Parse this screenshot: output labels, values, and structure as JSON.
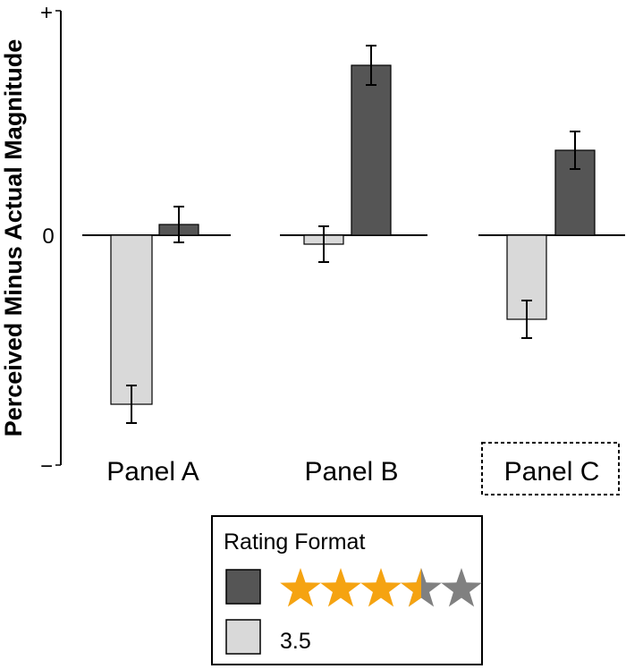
{
  "chart_data": {
    "type": "bar",
    "ylabel": "Perceived Minus Actual Magnitude",
    "y_tick_labels": {
      "top": "+",
      "zero": "0",
      "bottom": "−"
    },
    "ylim": [
      -2.5,
      2.5
    ],
    "grid": false,
    "categories": [
      "Panel A",
      "Panel B",
      "Panel C"
    ],
    "highlighted_category": "Panel C",
    "series": [
      {
        "format": "stars",
        "color": "#555555",
        "values": [
          0.12,
          1.9,
          0.95
        ],
        "errors": [
          0.2,
          0.22,
          0.21
        ]
      },
      {
        "format": "number",
        "color": "#d9d9d9",
        "values": [
          -1.89,
          -0.1,
          -0.94
        ],
        "errors": [
          0.21,
          0.2,
          0.21
        ]
      }
    ],
    "legend": {
      "title": "Rating Format",
      "position": "bottom-center",
      "entries": [
        {
          "swatch": "#555555",
          "stars": {
            "rating": 3.5,
            "max": 5,
            "filled_color": "#f5a311",
            "empty_color": "#808080"
          }
        },
        {
          "swatch": "#d9d9d9",
          "label": "3.5"
        }
      ]
    }
  }
}
